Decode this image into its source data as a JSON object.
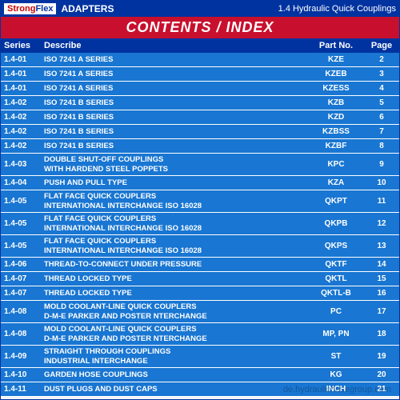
{
  "header": {
    "logo_strong": "Strong",
    "logo_flex": "Flex",
    "adapters": "ADAPTERS",
    "subtitle": "1.4 Hydraulic Quick Couplings"
  },
  "title": "CONTENTS / INDEX",
  "columns": {
    "series": "Series",
    "describe": "Describe",
    "part": "Part No.",
    "page": "Page"
  },
  "rows": [
    {
      "series": "1.4-01",
      "desc": "ISO 7241 A SERIES",
      "part": "KZE",
      "page": "2",
      "tall": false
    },
    {
      "series": "1.4-01",
      "desc": "ISO 7241 A SERIES",
      "part": "KZEB",
      "page": "3",
      "tall": false
    },
    {
      "series": "1.4-01",
      "desc": "ISO 7241 A SERIES",
      "part": "KZESS",
      "page": "4",
      "tall": false
    },
    {
      "series": "1.4-02",
      "desc": "ISO 7241 B SERIES",
      "part": "KZB",
      "page": "5",
      "tall": false
    },
    {
      "series": "1.4-02",
      "desc": "ISO 7241 B SERIES",
      "part": "KZD",
      "page": "6",
      "tall": false
    },
    {
      "series": "1.4-02",
      "desc": "ISO 7241 B SERIES",
      "part": "KZBSS",
      "page": "7",
      "tall": false
    },
    {
      "series": "1.4-02",
      "desc": "ISO 7241 B SERIES",
      "part": "KZBF",
      "page": "8",
      "tall": false
    },
    {
      "series": "1.4-03",
      "desc": "DOUBLE SHUT-OFF COUPLINGS\nWITH HARDEND STEEL POPPETS",
      "part": "KPC",
      "page": "9",
      "tall": true
    },
    {
      "series": "1.4-04",
      "desc": "PUSH AND PULL TYPE",
      "part": "KZA",
      "page": "10",
      "tall": false
    },
    {
      "series": "1.4-05",
      "desc": "FLAT FACE QUICK COUPLERS\nINTERNATIONAL INTERCHANGE ISO 16028",
      "part": "QKPT",
      "page": "11",
      "tall": true
    },
    {
      "series": "1.4-05",
      "desc": "FLAT FACE QUICK COUPLERS\nINTERNATIONAL INTERCHANGE ISO 16028",
      "part": "QKPB",
      "page": "12",
      "tall": true
    },
    {
      "series": "1.4-05",
      "desc": "FLAT FACE QUICK COUPLERS\nINTERNATIONAL INTERCHANGE ISO 16028",
      "part": "QKPS",
      "page": "13",
      "tall": true
    },
    {
      "series": "1.4-06",
      "desc": "THREAD-TO-CONNECT UNDER PRESSURE",
      "part": "QKTF",
      "page": "14",
      "tall": false
    },
    {
      "series": "1.4-07",
      "desc": "THREAD LOCKED TYPE",
      "part": "QKTL",
      "page": "15",
      "tall": false
    },
    {
      "series": "1.4-07",
      "desc": "THREAD LOCKED TYPE",
      "part": "QKTL-B",
      "page": "16",
      "tall": false
    },
    {
      "series": "1.4-08",
      "desc": "MOLD COOLANT-LINE QUICK COUPLERS\nD-M-E PARKER AND POSTER NTERCHANGE",
      "part": "PC",
      "page": "17",
      "tall": true
    },
    {
      "series": "1.4-08",
      "desc": "MOLD COOLANT-LINE QUICK COUPLERS\nD-M-E PARKER AND POSTER NTERCHANGE",
      "part": "MP, PN",
      "page": "18",
      "tall": true
    },
    {
      "series": "1.4-09",
      "desc": "STRAIGHT THROUGH COUPLINGS\nINDUSTRIAL INTERCHANGE",
      "part": "ST",
      "page": "19",
      "tall": true
    },
    {
      "series": "1.4-10",
      "desc": "GARDEN HOSE COUPLINGS",
      "part": "KG",
      "page": "20",
      "tall": false
    },
    {
      "series": "1.4-11",
      "desc": "DUST PLUGS AND DUST CAPS",
      "part": "INCH",
      "page": "21",
      "tall": false
    }
  ],
  "watermark": "de.hydraulichosegroup.com"
}
